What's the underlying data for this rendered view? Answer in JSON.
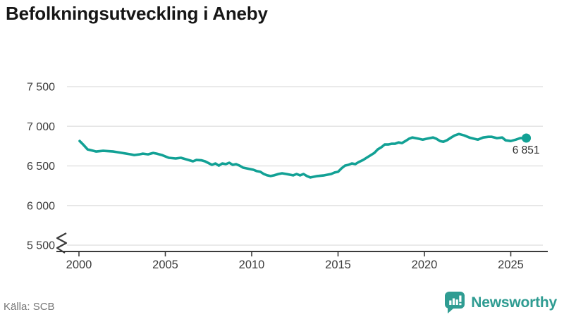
{
  "title": "Befolkningsutveckling i Aneby",
  "source": "Källa: SCB",
  "branding": {
    "name": "Newsworthy",
    "icon": "bar-chart-speech-bubble-icon"
  },
  "colors": {
    "line": "#12A195",
    "brand": "#2F9C92",
    "grid": "#e4e4e4",
    "axis": "#3b3b3b",
    "title_text": "#161616",
    "muted_text": "#757575",
    "end_label_text": "#2e2e2e"
  },
  "chart_data": {
    "type": "line",
    "title": "Befolkningsutveckling i Aneby",
    "xlabel": "",
    "ylabel": "",
    "x_ticks": [
      "2000",
      "2005",
      "2010",
      "2015",
      "2020",
      "2025"
    ],
    "x_tick_values": [
      2000,
      2005,
      2010,
      2015,
      2020,
      2025
    ],
    "y_ticks": [
      "5 500",
      "6 000",
      "6 500",
      "7 000",
      "7 500"
    ],
    "y_tick_values": [
      5500,
      6000,
      6500,
      7000,
      7500
    ],
    "xlim": [
      1998.7,
      2027.2
    ],
    "ylim": [
      5500,
      7500
    ],
    "axis_break_below_min": true,
    "grid": "horizontal",
    "legend": "none",
    "end_label": "6 851",
    "end_value": 6851,
    "series": [
      {
        "name": "Befolkning i Aneby",
        "points": [
          [
            2000.04,
            6814
          ],
          [
            2000.24,
            6770
          ],
          [
            2000.5,
            6708
          ],
          [
            2001.0,
            6681
          ],
          [
            2001.4,
            6690
          ],
          [
            2002.0,
            6681
          ],
          [
            2002.5,
            6664
          ],
          [
            2003.0,
            6646
          ],
          [
            2003.2,
            6637
          ],
          [
            2003.5,
            6646
          ],
          [
            2003.7,
            6655
          ],
          [
            2004.0,
            6646
          ],
          [
            2004.3,
            6664
          ],
          [
            2004.5,
            6655
          ],
          [
            2004.8,
            6637
          ],
          [
            2005.2,
            6602
          ],
          [
            2005.6,
            6593
          ],
          [
            2005.9,
            6602
          ],
          [
            2006.2,
            6584
          ],
          [
            2006.6,
            6558
          ],
          [
            2006.8,
            6575
          ],
          [
            2007.1,
            6570
          ],
          [
            2007.3,
            6558
          ],
          [
            2007.7,
            6513
          ],
          [
            2007.9,
            6531
          ],
          [
            2008.1,
            6504
          ],
          [
            2008.3,
            6531
          ],
          [
            2008.5,
            6522
          ],
          [
            2008.7,
            6540
          ],
          [
            2008.9,
            6513
          ],
          [
            2009.1,
            6522
          ],
          [
            2009.3,
            6504
          ],
          [
            2009.5,
            6478
          ],
          [
            2009.9,
            6460
          ],
          [
            2010.1,
            6451
          ],
          [
            2010.3,
            6434
          ],
          [
            2010.5,
            6425
          ],
          [
            2010.7,
            6398
          ],
          [
            2010.9,
            6381
          ],
          [
            2011.1,
            6372
          ],
          [
            2011.3,
            6381
          ],
          [
            2011.55,
            6398
          ],
          [
            2011.76,
            6407
          ],
          [
            2012.0,
            6398
          ],
          [
            2012.4,
            6381
          ],
          [
            2012.6,
            6398
          ],
          [
            2012.8,
            6381
          ],
          [
            2013.0,
            6398
          ],
          [
            2013.2,
            6372
          ],
          [
            2013.4,
            6354
          ],
          [
            2013.6,
            6363
          ],
          [
            2013.8,
            6372
          ],
          [
            2014.2,
            6381
          ],
          [
            2014.6,
            6398
          ],
          [
            2014.8,
            6416
          ],
          [
            2015.0,
            6425
          ],
          [
            2015.2,
            6469
          ],
          [
            2015.4,
            6504
          ],
          [
            2015.6,
            6513
          ],
          [
            2015.8,
            6531
          ],
          [
            2016.0,
            6522
          ],
          [
            2016.2,
            6549
          ],
          [
            2016.45,
            6575
          ],
          [
            2016.65,
            6602
          ],
          [
            2016.9,
            6637
          ],
          [
            2017.1,
            6664
          ],
          [
            2017.3,
            6708
          ],
          [
            2017.5,
            6735
          ],
          [
            2017.7,
            6770
          ],
          [
            2017.9,
            6770
          ],
          [
            2018.1,
            6779
          ],
          [
            2018.3,
            6779
          ],
          [
            2018.5,
            6796
          ],
          [
            2018.7,
            6788
          ],
          [
            2018.9,
            6814
          ],
          [
            2019.1,
            6841
          ],
          [
            2019.3,
            6858
          ],
          [
            2019.5,
            6850
          ],
          [
            2019.7,
            6841
          ],
          [
            2019.9,
            6832
          ],
          [
            2020.1,
            6841
          ],
          [
            2020.3,
            6850
          ],
          [
            2020.5,
            6858
          ],
          [
            2020.7,
            6841
          ],
          [
            2020.9,
            6814
          ],
          [
            2021.1,
            6805
          ],
          [
            2021.3,
            6823
          ],
          [
            2021.55,
            6858
          ],
          [
            2021.76,
            6885
          ],
          [
            2022.0,
            6903
          ],
          [
            2022.3,
            6885
          ],
          [
            2022.6,
            6858
          ],
          [
            2022.9,
            6841
          ],
          [
            2023.1,
            6832
          ],
          [
            2023.4,
            6858
          ],
          [
            2023.7,
            6867
          ],
          [
            2023.9,
            6867
          ],
          [
            2024.2,
            6850
          ],
          [
            2024.5,
            6858
          ],
          [
            2024.7,
            6823
          ],
          [
            2025.0,
            6814
          ],
          [
            2025.3,
            6832
          ],
          [
            2025.55,
            6850
          ],
          [
            2025.9,
            6851
          ]
        ]
      }
    ]
  }
}
